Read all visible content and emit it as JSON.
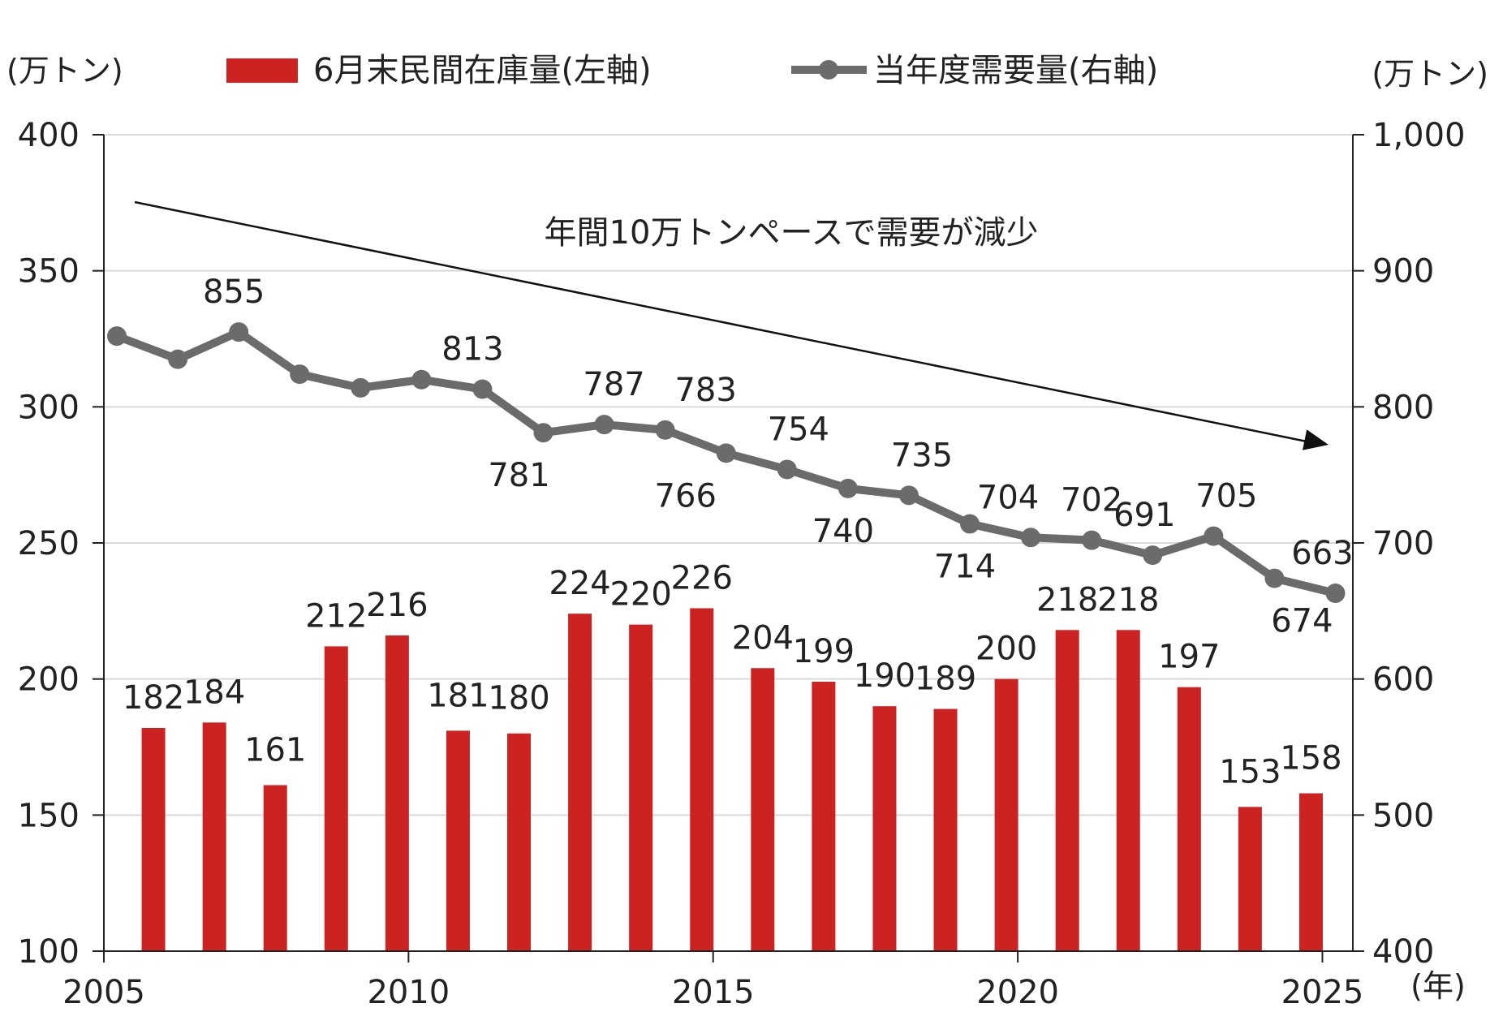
{
  "chart_data": {
    "type": "bar+line",
    "title": "",
    "left_unit": "(万トン)",
    "right_unit": "(万トン)",
    "x_unit": "(年)",
    "left_ylim": [
      100,
      400
    ],
    "right_ylim": [
      400,
      1000
    ],
    "left_ticks": [
      "100",
      "150",
      "200",
      "250",
      "300",
      "350",
      "400"
    ],
    "right_ticks": [
      "400",
      "500",
      "600",
      "700",
      "800",
      "900",
      "1,000"
    ],
    "x_ticks": [
      "2005",
      "2010",
      "2015",
      "2020",
      "2025"
    ],
    "x_range": [
      2005,
      2025.5
    ],
    "grid": true,
    "legend_position": "top",
    "bar_color": "#cc2222",
    "line_color": "#6b6b6b",
    "series": [
      {
        "name": "6月末民間在庫量(左軸)",
        "type": "bar",
        "axis": "left",
        "x": [
          2006,
          2007,
          2008,
          2009,
          2010,
          2011,
          2012,
          2013,
          2014,
          2015,
          2016,
          2017,
          2018,
          2019,
          2020,
          2021,
          2022,
          2023,
          2024,
          2025
        ],
        "values": [
          182,
          184,
          161,
          212,
          216,
          181,
          180,
          224,
          220,
          226,
          204,
          199,
          190,
          189,
          200,
          218,
          218,
          197,
          153,
          158
        ]
      },
      {
        "name": "当年度需要量(右軸)",
        "type": "line",
        "axis": "right",
        "x": [
          2005,
          2006,
          2007,
          2008,
          2009,
          2010,
          2011,
          2012,
          2013,
          2014,
          2015,
          2016,
          2017,
          2018,
          2019,
          2020,
          2021,
          2022,
          2023,
          2024,
          2025
        ],
        "values": [
          852,
          835,
          855,
          824,
          814,
          820,
          813,
          781,
          787,
          783,
          766,
          754,
          740,
          735,
          714,
          704,
          702,
          691,
          705,
          674,
          663
        ],
        "labels": [
          "",
          "",
          "855",
          "",
          "",
          "",
          "813",
          "781",
          "787",
          "783",
          "766",
          "754",
          "740",
          "735",
          "714",
          "704",
          "702",
          "691",
          "705",
          "674",
          "663"
        ]
      }
    ],
    "annotation": "年間10万トンペースで需要が減少"
  }
}
